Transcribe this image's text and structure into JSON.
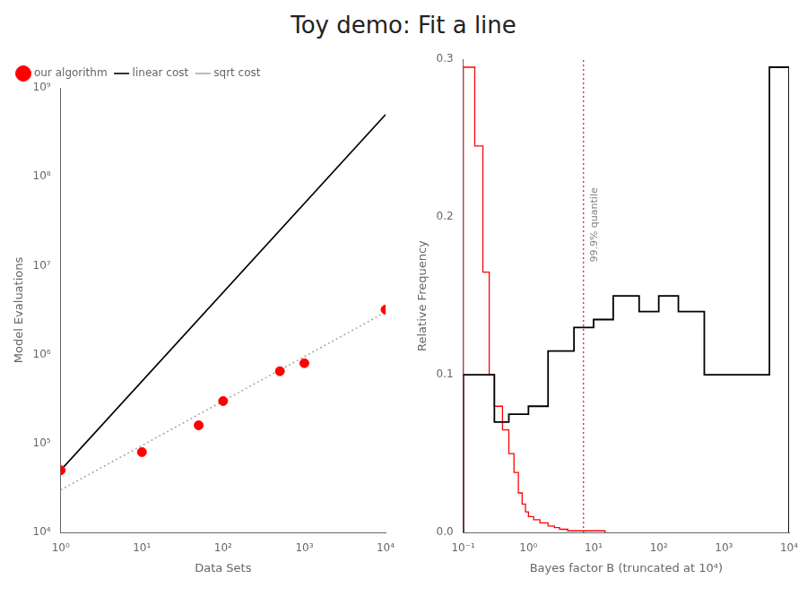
{
  "title": "Toy demo: Fit a line",
  "chart_data": [
    {
      "type": "line",
      "xlabel": "Data Sets",
      "ylabel": "Model Evaluations",
      "log": true,
      "xlim": [
        1,
        10000
      ],
      "ylim": [
        10000,
        1000000000
      ],
      "xticks": [
        {
          "value": 1,
          "label": "10⁰"
        },
        {
          "value": 10,
          "label": "10¹"
        },
        {
          "value": 100,
          "label": "10²"
        },
        {
          "value": 1000,
          "label": "10³"
        },
        {
          "value": 10000,
          "label": "10⁴"
        }
      ],
      "yticks": [
        {
          "value": 10000,
          "label": "10⁴"
        },
        {
          "value": 100000,
          "label": "10⁵"
        },
        {
          "value": 1000000,
          "label": "10⁶"
        },
        {
          "value": 10000000,
          "label": "10⁷"
        },
        {
          "value": 100000000,
          "label": "10⁸"
        },
        {
          "value": 1000000000,
          "label": "10⁹"
        }
      ],
      "grid": false,
      "legend": "upper left",
      "series": [
        {
          "name": "linear cost",
          "type": "line",
          "color": "black",
          "line_style": "solid",
          "x": [
            1,
            10000
          ],
          "values": [
            50000,
            500000000
          ]
        },
        {
          "name": "sqrt cost",
          "type": "line",
          "color": "#aaaaaa",
          "line_style": "dotted",
          "x": [
            1,
            10000
          ],
          "values": [
            30000,
            3000000
          ]
        },
        {
          "name": "our algorithm",
          "type": "scatter",
          "color": "red",
          "marker": "circle",
          "x": [
            1,
            10,
            50,
            100,
            500,
            1000,
            10000
          ],
          "values": [
            50000,
            80000,
            160000,
            300000,
            650000,
            800000,
            3200000
          ]
        }
      ]
    },
    {
      "type": "histogram",
      "xlabel": "Bayes factor B (truncated at 10⁴)",
      "ylabel": "Relative Frequency",
      "log": "x",
      "xlim": [
        0.1,
        10000
      ],
      "ylim": [
        0.0,
        0.3
      ],
      "xticks": [
        {
          "value": 0.1,
          "label": "10⁻¹"
        },
        {
          "value": 1,
          "label": "10⁰"
        },
        {
          "value": 10,
          "label": "10¹"
        },
        {
          "value": 100,
          "label": "10²"
        },
        {
          "value": 1000,
          "label": "10³"
        },
        {
          "value": 10000,
          "label": "10⁴"
        }
      ],
      "yticks": [
        {
          "value": 0.0,
          "label": "0.0"
        },
        {
          "value": 0.1,
          "label": "0.1"
        },
        {
          "value": 0.2,
          "label": "0.2"
        },
        {
          "value": 0.3,
          "label": "0.3"
        }
      ],
      "grid": false,
      "series": [
        {
          "color": "black",
          "bins": [
            0.1,
            0.3,
            0.5,
            1.0,
            2.0,
            5.0,
            10.0,
            20.0,
            50.0,
            100.0,
            200.0,
            500.0,
            1000.0,
            5000.0,
            10000.0
          ],
          "values": [
            0.1,
            0.07,
            0.075,
            0.08,
            0.115,
            0.13,
            0.135,
            0.15,
            0.14,
            0.15,
            0.14,
            0.1,
            0.1,
            0.295
          ]
        },
        {
          "color": "red",
          "bins": [
            0.1,
            0.15,
            0.2,
            0.25,
            0.3,
            0.4,
            0.5,
            0.6,
            0.7,
            0.8,
            0.9,
            1.0,
            1.2,
            1.5,
            2.0,
            2.5,
            3.0,
            4.0,
            5.0,
            7.0,
            10.0,
            15.0
          ],
          "values": [
            0.295,
            0.245,
            0.165,
            0.1,
            0.08,
            0.065,
            0.05,
            0.038,
            0.025,
            0.018,
            0.013,
            0.01,
            0.008,
            0.006,
            0.004,
            0.003,
            0.002,
            0.001,
            0.001,
            0.001,
            0.001
          ]
        }
      ],
      "annotations": [
        {
          "type": "vline",
          "x": 7.0,
          "text": "99.9% quantile",
          "color": "red",
          "line_style": "dotted"
        }
      ]
    }
  ]
}
